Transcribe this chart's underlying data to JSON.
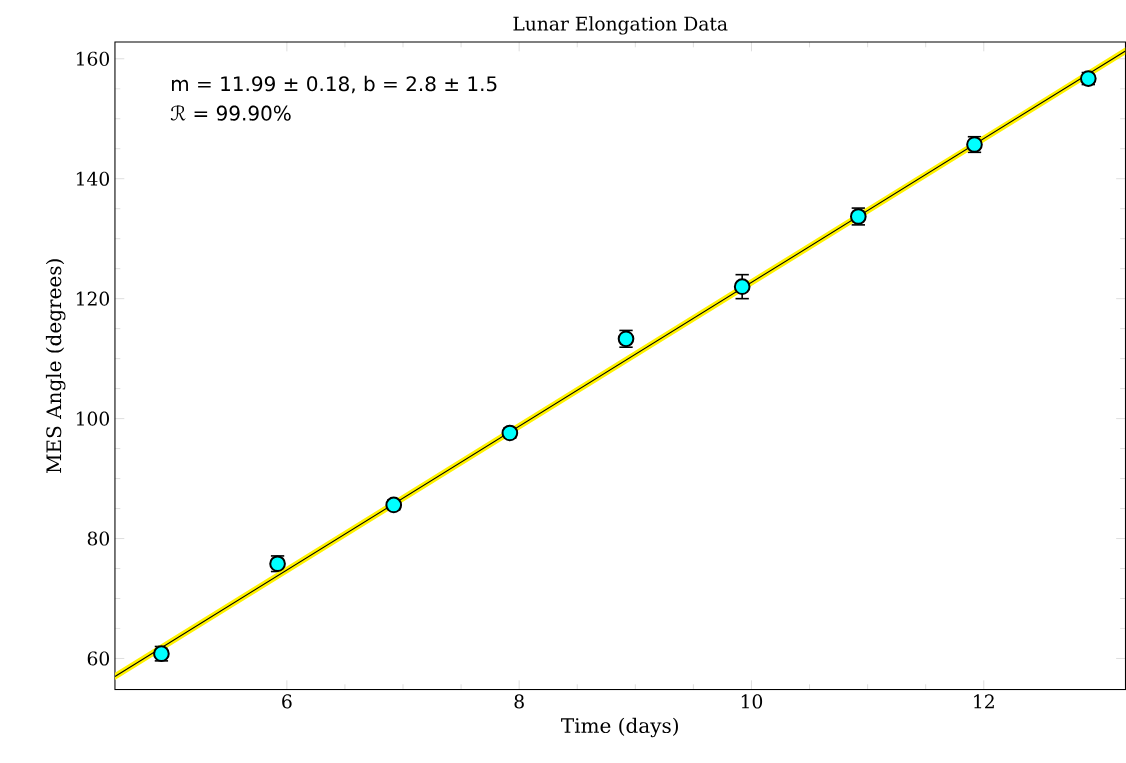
{
  "chart_data": {
    "type": "scatter",
    "title": "Lunar Elongation Data",
    "xlabel": "Time (days)",
    "ylabel": "MES Angle (degrees)",
    "annotations": [
      "m = 11.99 ± 0.18, b = 2.8 ± 1.5",
      "ℛ =  99.90%"
    ],
    "xlim": [
      4.52,
      13.22
    ],
    "ylim": [
      54.8,
      162.8
    ],
    "xticks": [
      6,
      8,
      10,
      12
    ],
    "yticks": [
      60,
      80,
      100,
      120,
      140,
      160
    ],
    "series": [
      {
        "marker": "circle",
        "color": "#00ffff",
        "x": [
          4.92,
          5.92,
          6.92,
          7.92,
          8.92,
          9.92,
          10.92,
          11.92,
          12.9
        ],
        "values": [
          60.8,
          75.8,
          85.6,
          97.6,
          113.3,
          122.0,
          133.7,
          145.7,
          156.7
        ],
        "errors": [
          1.2,
          1.3,
          0.8,
          0.8,
          1.4,
          2.0,
          1.4,
          1.3,
          1.0
        ]
      },
      {
        "type": "line",
        "marker": "none",
        "color": "#000000",
        "x": [
          4.52,
          13.22
        ],
        "values": [
          57.0,
          161.3
        ],
        "lower": [
          56.4,
          160.7
        ],
        "upper": [
          57.6,
          161.9
        ]
      }
    ]
  }
}
